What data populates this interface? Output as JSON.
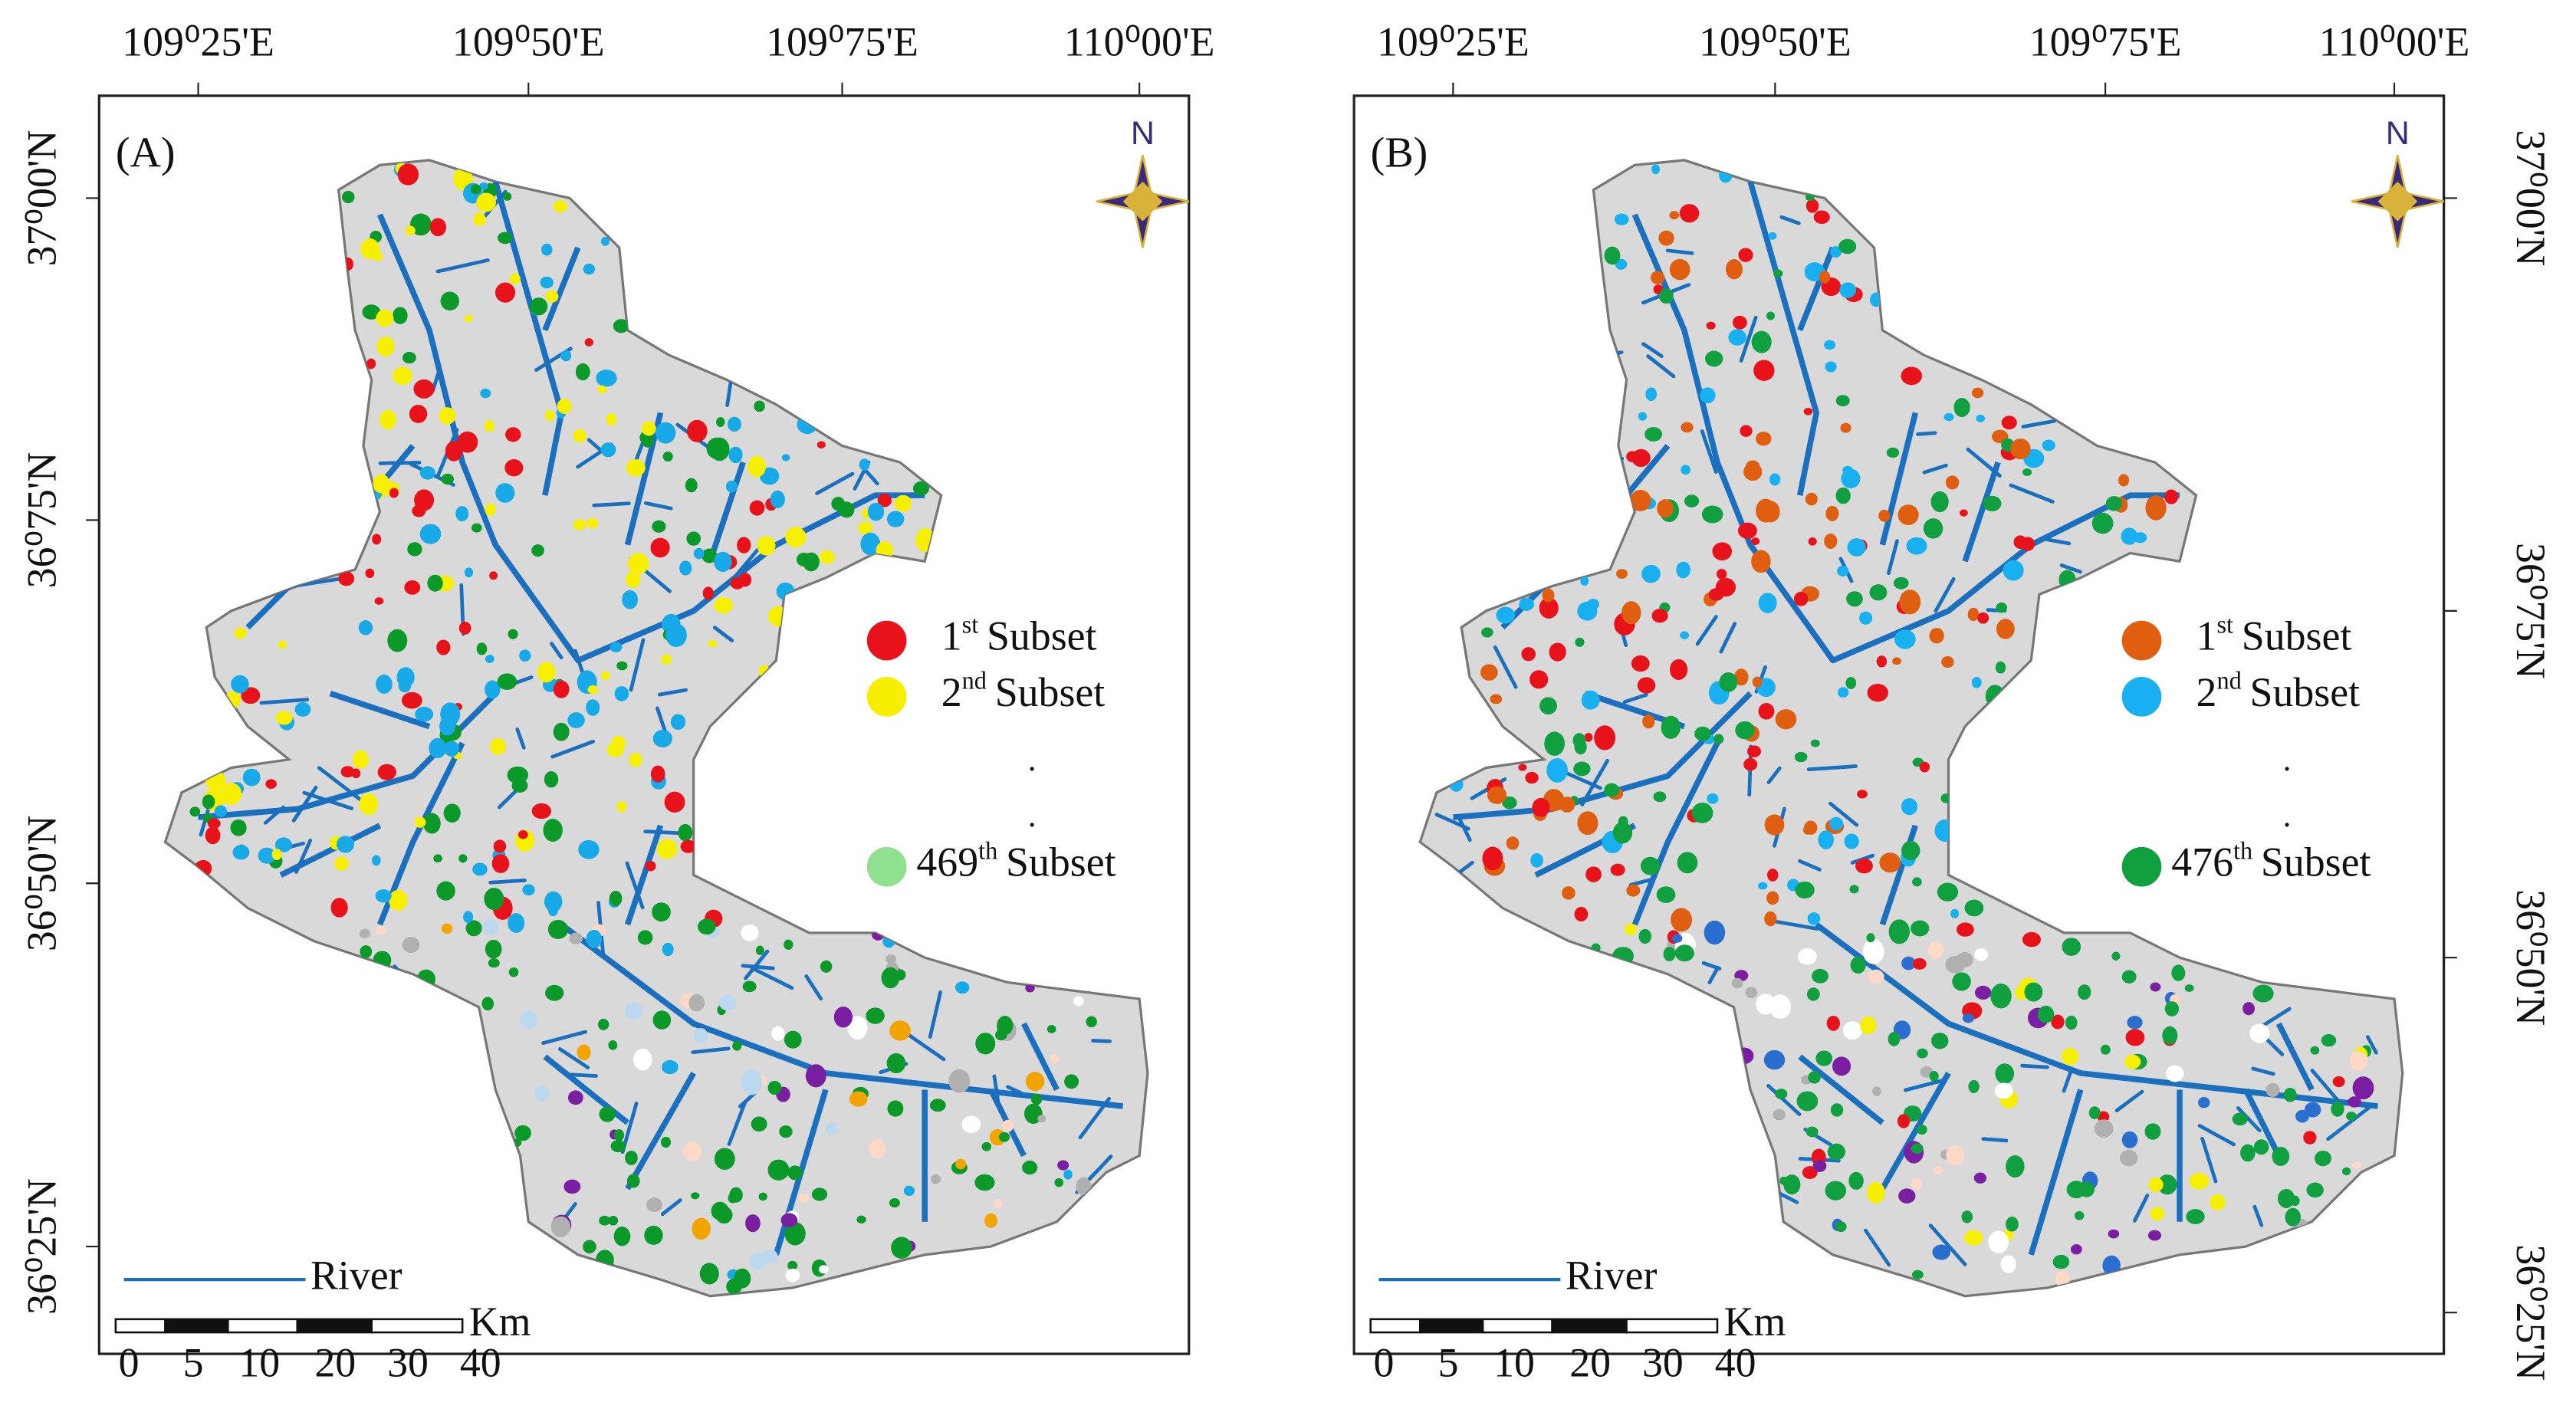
{
  "panels": [
    {
      "label": "(A)",
      "top_labels": [
        "109⁰25'E",
        "109⁰50'E",
        "109⁰75'E",
        "110⁰00'E"
      ],
      "side_labels": [
        "37⁰00'N",
        "36⁰75'N",
        "36⁰50'N",
        "36⁰25'N"
      ],
      "north": "N",
      "legend": [
        {
          "number": "1",
          "sup": "st",
          "text": "Subset"
        },
        {
          "number": "2",
          "sup": "nd",
          "text": "Subset"
        },
        {
          "number": "469",
          "sup": "th",
          "text": "Subset"
        }
      ],
      "ellipsis": [
        ".",
        "."
      ],
      "river": "River",
      "scale_unit": "Km",
      "scale_labels": [
        "0",
        "5",
        "10",
        "20",
        "30",
        "40"
      ]
    },
    {
      "label": "(B)",
      "top_labels": [
        "109⁰25'E",
        "109⁰50'E",
        "109⁰75'E",
        "110⁰00'E"
      ],
      "side_labels": [
        "37⁰00'N",
        "36⁰75'N",
        "36⁰50'N",
        "36⁰25'N"
      ],
      "north": "N",
      "legend": [
        {
          "number": "1",
          "sup": "st",
          "text": "Subset"
        },
        {
          "number": "2",
          "sup": "nd",
          "text": "Subset"
        },
        {
          "number": "476",
          "sup": "th",
          "text": "Subset"
        }
      ],
      "ellipsis": [
        ".",
        "."
      ],
      "river": "River",
      "scale_unit": "Km",
      "scale_labels": [
        "0",
        "5",
        "10",
        "20",
        "30",
        "40"
      ]
    }
  ]
}
